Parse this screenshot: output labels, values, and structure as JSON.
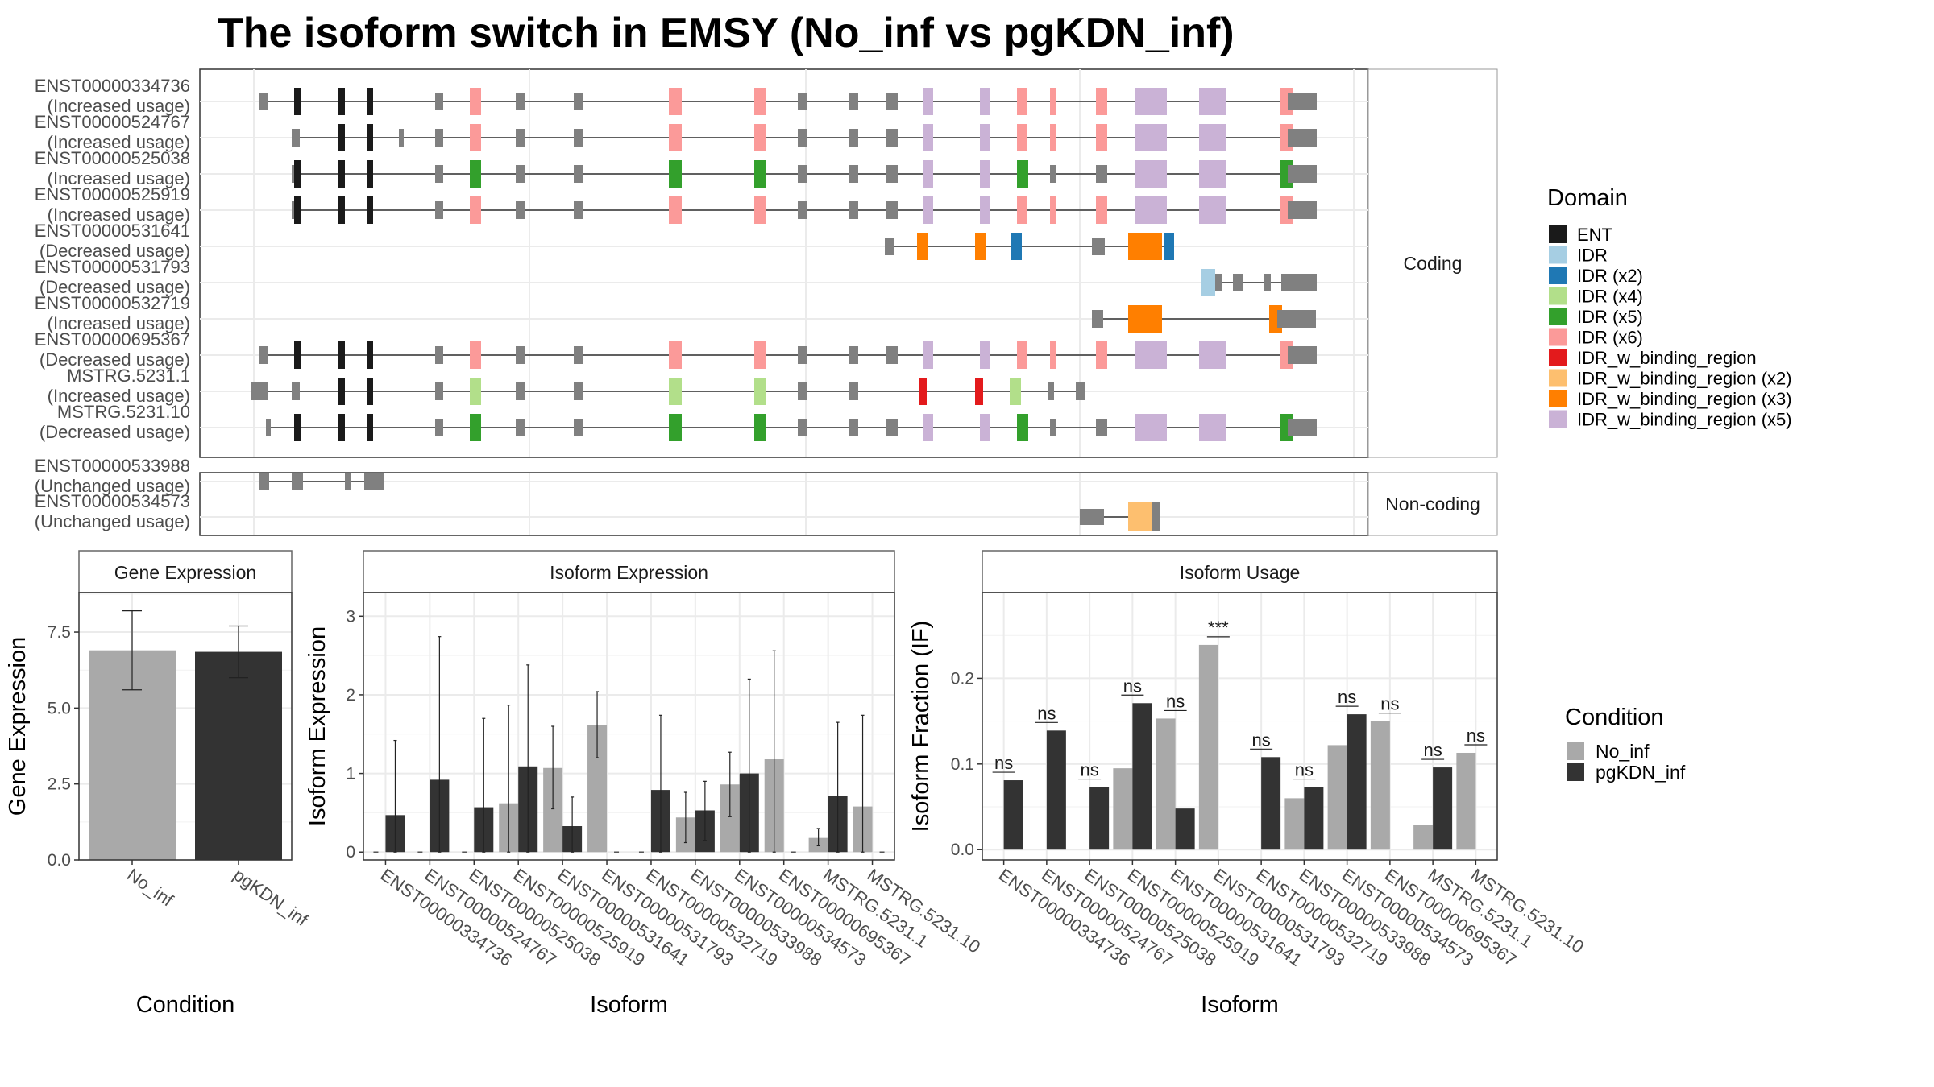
{
  "title": "The isoform switch in EMSY (No_inf vs pgKDN_inf)",
  "colors": {
    "no_inf": "#a9a9a9",
    "pgkdn_inf": "#333333",
    "exon": "#808080",
    "line": "#333333",
    "grid": "#ebebeb",
    "panel_border": "#333333",
    "strip_fill": "#ffffff",
    "strip_border": "#666666"
  },
  "domain_legend": {
    "title": "Domain",
    "items": [
      {
        "label": "ENT",
        "color": "#1a1a1a"
      },
      {
        "label": "IDR",
        "color": "#a6cee3"
      },
      {
        "label": "IDR (x2)",
        "color": "#1f78b4"
      },
      {
        "label": "IDR (x4)",
        "color": "#b2df8a"
      },
      {
        "label": "IDR (x5)",
        "color": "#33a02c"
      },
      {
        "label": "IDR (x6)",
        "color": "#fb9a99"
      },
      {
        "label": "IDR_w_binding_region",
        "color": "#e31a1c"
      },
      {
        "label": "IDR_w_binding_region (x2)",
        "color": "#fdbf6f"
      },
      {
        "label": "IDR_w_binding_region (x3)",
        "color": "#ff7f00"
      },
      {
        "label": "IDR_w_binding_region (x5)",
        "color": "#cab2d6"
      }
    ]
  },
  "condition_legend": {
    "title": "Condition",
    "items": [
      {
        "label": "No_inf",
        "color": "#a9a9a9"
      },
      {
        "label": "pgKDN_inf",
        "color": "#333333"
      }
    ]
  },
  "structure": {
    "coding_label": "Coding",
    "noncoding_label": "Non-coding",
    "coding": [
      {
        "id": "ENST00000334736",
        "usage": "(Increased usage)"
      },
      {
        "id": "ENST00000524767",
        "usage": "(Increased usage)"
      },
      {
        "id": "ENST00000525038",
        "usage": "(Increased usage)"
      },
      {
        "id": "ENST00000525919",
        "usage": "(Increased usage)"
      },
      {
        "id": "ENST00000531641",
        "usage": "(Decreased usage)"
      },
      {
        "id": "ENST00000531793",
        "usage": "(Decreased usage)"
      },
      {
        "id": "ENST00000532719",
        "usage": "(Increased usage)"
      },
      {
        "id": "ENST00000695367",
        "usage": "(Decreased usage)"
      },
      {
        "id": "MSTRG.5231.1",
        "usage": "(Increased usage)"
      },
      {
        "id": "MSTRG.5231.10",
        "usage": "(Decreased usage)"
      }
    ],
    "noncoding": [
      {
        "id": "ENST00000533988",
        "usage": "(Unchanged usage)"
      },
      {
        "id": "ENST00000534573",
        "usage": "(Unchanged usage)"
      }
    ]
  },
  "chart_data": [
    {
      "type": "bar",
      "title": "Gene Expression",
      "xlabel": "Condition",
      "ylabel": "Gene Expression",
      "categories": [
        "No_inf",
        "pgKDN_inf"
      ],
      "values": [
        6.9,
        6.85
      ],
      "error_low": [
        5.6,
        6.0
      ],
      "error_high": [
        8.2,
        7.7
      ],
      "ylim": [
        0,
        8.8
      ],
      "yticks": [
        "0.0",
        "2.5",
        "5.0",
        "7.5"
      ]
    },
    {
      "type": "bar",
      "title": "Isoform Expression",
      "xlabel": "Isoform",
      "ylabel": "Isoform Expression",
      "categories": [
        "ENST00000334736",
        "ENST00000524767",
        "ENST00000525038",
        "ENST00000525919",
        "ENST00000531641",
        "ENST00000531793",
        "ENST00000532719",
        "ENST00000533988",
        "ENST00000534573",
        "ENST00000695367",
        "MSTRG.5231.1",
        "MSTRG.5231.10"
      ],
      "series": [
        {
          "name": "No_inf",
          "values": [
            0,
            0,
            0,
            0.62,
            1.07,
            1.62,
            0,
            0.44,
            0.86,
            1.18,
            0.18,
            0.58
          ],
          "error_low": [
            0,
            0,
            0,
            0.0,
            0.55,
            1.2,
            0,
            0.12,
            0.45,
            0.0,
            0.08,
            0.0
          ],
          "error_high": [
            0,
            0,
            0,
            1.87,
            1.6,
            2.04,
            0,
            0.76,
            1.27,
            2.56,
            0.3,
            1.74
          ]
        },
        {
          "name": "pgKDN_inf",
          "values": [
            0.47,
            0.92,
            0.57,
            1.09,
            0.33,
            0,
            0.79,
            0.53,
            1.0,
            0,
            0.71,
            0
          ],
          "error_low": [
            0.0,
            0.0,
            0.0,
            0.0,
            0.0,
            0,
            0.0,
            0.15,
            0.0,
            0,
            0.0,
            0
          ],
          "error_high": [
            1.42,
            2.74,
            1.7,
            2.38,
            0.7,
            0,
            1.74,
            0.9,
            2.2,
            0,
            1.65,
            0
          ]
        }
      ],
      "ylim": [
        -0.1,
        3.3
      ],
      "yticks": [
        "0",
        "1",
        "2",
        "3"
      ]
    },
    {
      "type": "bar",
      "title": "Isoform Usage",
      "xlabel": "Isoform",
      "ylabel": "Isoform Fraction (IF)",
      "categories": [
        "ENST00000334736",
        "ENST00000524767",
        "ENST00000525038",
        "ENST00000525919",
        "ENST00000531641",
        "ENST00000531793",
        "ENST00000532719",
        "ENST00000533988",
        "ENST00000534573",
        "ENST00000695367",
        "MSTRG.5231.1",
        "MSTRG.5231.10"
      ],
      "series": [
        {
          "name": "No_inf",
          "values": [
            0,
            0,
            0,
            0.095,
            0.153,
            0.239,
            0,
            0.06,
            0.122,
            0.15,
            0.029,
            0.113
          ]
        },
        {
          "name": "pgKDN_inf",
          "values": [
            0.081,
            0.139,
            0.073,
            0.171,
            0.048,
            0,
            0.108,
            0.073,
            0.158,
            0,
            0.096,
            0
          ]
        }
      ],
      "significance": [
        "ns",
        "ns",
        "ns",
        "ns",
        "ns",
        "***",
        "ns",
        "ns",
        "ns",
        "ns",
        "ns",
        "ns"
      ],
      "ylim": [
        -0.012,
        0.3
      ],
      "yticks": [
        "0.0",
        "0.1",
        "0.2"
      ]
    }
  ]
}
